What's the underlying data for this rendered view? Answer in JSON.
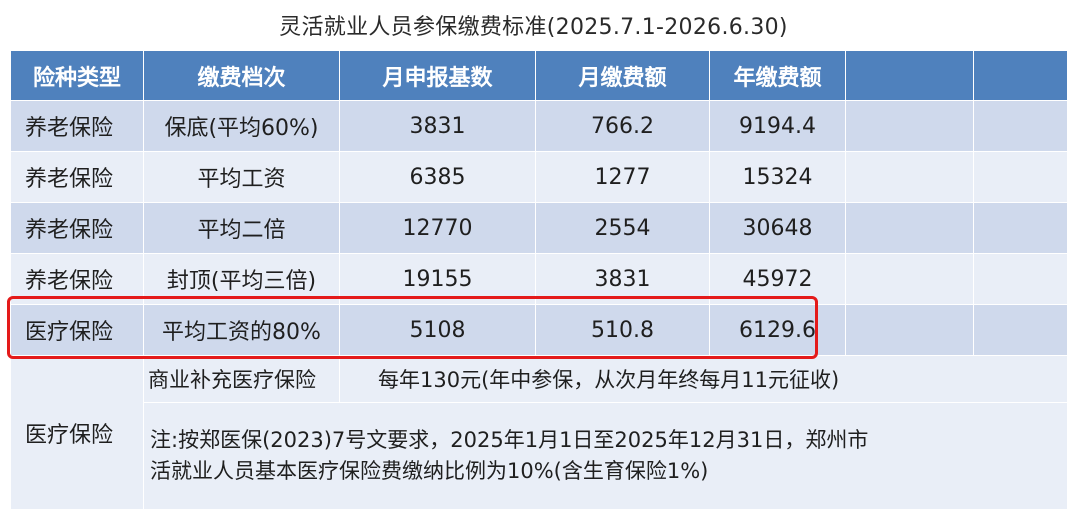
{
  "title": "灵活就业人员参保缴费标准(2025.7.1-2026.6.30)",
  "headers": [
    "险种类型",
    "缴费档次",
    "月申报基数",
    "月缴费额",
    "年缴费额",
    "",
    ""
  ],
  "rows": [
    {
      "type": "养老保险",
      "tier": "保底(平均60%)",
      "base": "3831",
      "monthly": "766.2",
      "annual": "9194.4"
    },
    {
      "type": "养老保险",
      "tier": "平均工资",
      "base": "6385",
      "monthly": "1277",
      "annual": "15324"
    },
    {
      "type": "养老保险",
      "tier": "平均二倍",
      "base": "12770",
      "monthly": "2554",
      "annual": "30648"
    },
    {
      "type": "养老保险",
      "tier": "封顶(平均三倍)",
      "base": "19155",
      "monthly": "3831",
      "annual": "45972"
    },
    {
      "type": "医疗保险",
      "tier": "平均工资的80%",
      "base": "5108",
      "monthly": "510.8",
      "annual": "6129.6"
    }
  ],
  "medical_extra": {
    "type": "医疗保险",
    "item_label": "商业补充医疗保险",
    "item_desc": "每年130元(年中参保，从次月年终每月11元征收)",
    "note": "注:按郑医保(2023)7号文要求，2025年1月1日至2025年12月31日，郑州市\n活就业人员基本医疗保险费缴纳比例为10%(含生育保险1%)"
  },
  "colors": {
    "header": "#4f81bd",
    "row_shade": "#cfd9ec",
    "row_plain": "#e9eef7",
    "highlight": "#e41a1a"
  }
}
